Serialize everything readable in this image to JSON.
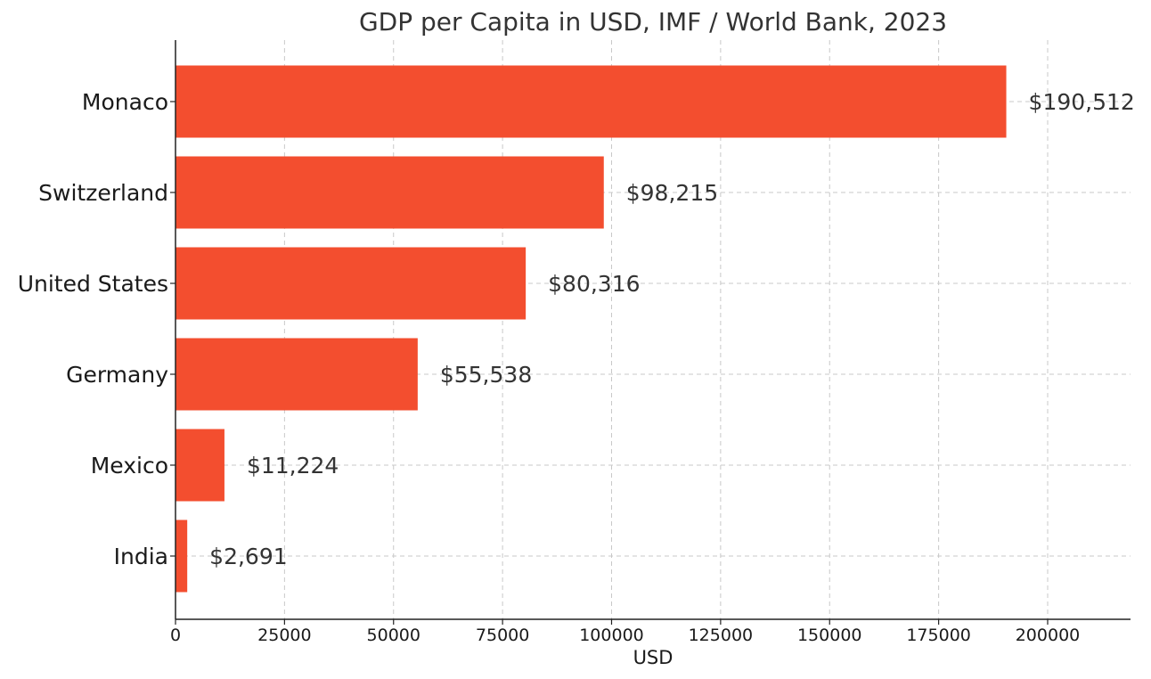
{
  "chart_data": {
    "type": "bar",
    "orientation": "horizontal",
    "title": "GDP per Capita in USD, IMF / World Bank, 2023",
    "xlabel": "USD",
    "ylabel": "",
    "categories": [
      "Monaco",
      "Switzerland",
      "United States",
      "Germany",
      "Mexico",
      "India"
    ],
    "values": [
      190512,
      98215,
      80316,
      55538,
      11224,
      2691
    ],
    "value_labels": [
      "$190,512",
      "$98,215",
      "$80,316",
      "$55,538",
      "$11,224",
      "$2,691"
    ],
    "xlim": [
      0,
      219000
    ],
    "xticks": [
      0,
      25000,
      50000,
      75000,
      100000,
      125000,
      150000,
      175000,
      200000
    ],
    "xtick_labels": [
      "0",
      "25000",
      "50000",
      "75000",
      "100000",
      "125000",
      "150000",
      "175000",
      "200000"
    ],
    "grid": true,
    "bar_color": "#f34e2f",
    "text_color": "#333333"
  }
}
